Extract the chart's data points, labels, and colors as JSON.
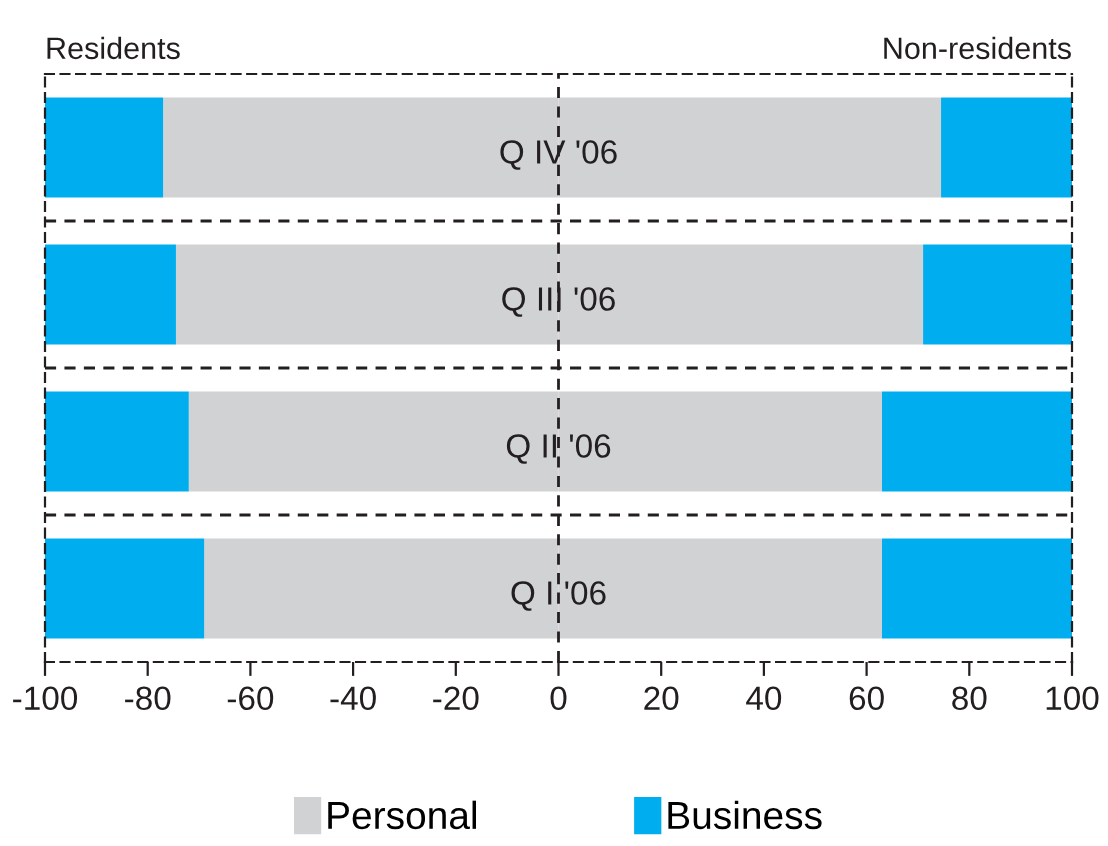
{
  "chart_data": {
    "type": "bar",
    "orientation": "horizontal",
    "stacked": true,
    "categories": [
      "Q IV '06",
      "Q III '06",
      "Q II '06",
      "Q I '06"
    ],
    "series": [
      {
        "name": "Personal",
        "color": "#d1d2d4",
        "values": [
          -77,
          -74.5,
          -72,
          -69
        ]
      },
      {
        "name": "Business",
        "color": "#00aeef",
        "values": [
          -23,
          -25.5,
          -28,
          -31
        ]
      },
      {
        "color": "#d1d2d4",
        "values": [
          74.5,
          71,
          63,
          63
        ]
      },
      {
        "color": "#00aeef",
        "values": [
          25.5,
          29,
          37,
          37
        ]
      }
    ],
    "xlim": [
      -100,
      100
    ],
    "xticks": [
      -100,
      -80,
      -60,
      -40,
      -20,
      0,
      20,
      40,
      60,
      80,
      100
    ],
    "ref_lines": [
      {
        "axis": "x",
        "value": 0,
        "line_style": "dashed",
        "color": "#231f20"
      }
    ],
    "annotations": [
      "Residents",
      "Non-residents"
    ],
    "legend": "bottom",
    "grid": false,
    "tick_labels": "x"
  }
}
